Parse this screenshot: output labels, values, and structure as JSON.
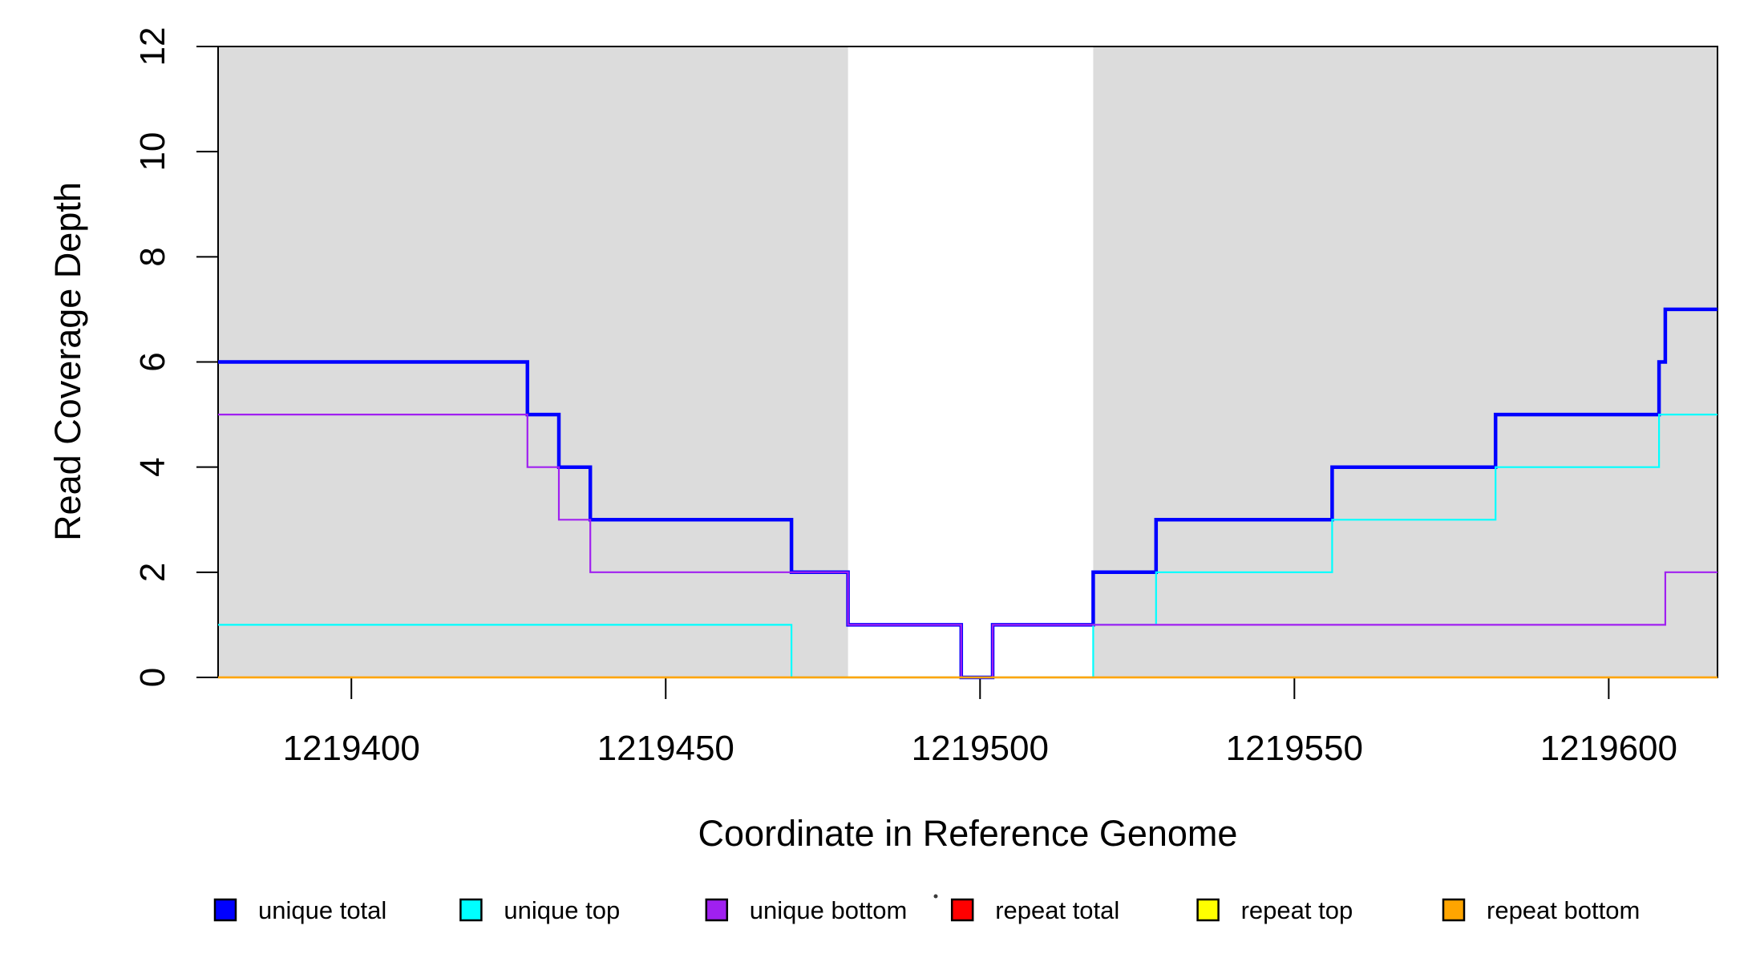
{
  "chart_data": {
    "type": "line",
    "step": "post",
    "title": "",
    "xlabel": "Coordinate in Reference Genome",
    "ylabel": "Read Coverage Depth",
    "xlim": [
      1219378.8,
      1219617.3
    ],
    "ylim": [
      0,
      12
    ],
    "x_ticks": [
      1219400,
      1219450,
      1219500,
      1219550,
      1219600
    ],
    "y_ticks": [
      0,
      2,
      4,
      6,
      8,
      10,
      12
    ],
    "grid": false,
    "legend_position": "bottom",
    "plot_background": "#ffffff",
    "band_color": "#DCDCDC",
    "background_bands": [
      {
        "x_start": 1219378.8,
        "x_end": 1219479,
        "color": "#DCDCDC"
      },
      {
        "x_start": 1219518,
        "x_end": 1219617.3,
        "color": "#DCDCDC"
      }
    ],
    "series": [
      {
        "name": "unique total",
        "color": "#0000FF",
        "lwd": 4.5,
        "points": [
          [
            1219378.8,
            6
          ],
          [
            1219428,
            5
          ],
          [
            1219433,
            4
          ],
          [
            1219438,
            3
          ],
          [
            1219470,
            2
          ],
          [
            1219479,
            1
          ],
          [
            1219497,
            0
          ],
          [
            1219502,
            1
          ],
          [
            1219518,
            2
          ],
          [
            1219528,
            3
          ],
          [
            1219556,
            4
          ],
          [
            1219582,
            5
          ],
          [
            1219608,
            6
          ],
          [
            1219609,
            7
          ]
        ]
      },
      {
        "name": "unique top",
        "color": "#00FFFF",
        "lwd": 2.2,
        "points": [
          [
            1219378.8,
            1
          ],
          [
            1219470,
            0
          ],
          [
            1219518,
            1
          ],
          [
            1219528,
            2
          ],
          [
            1219556,
            3
          ],
          [
            1219582,
            4
          ],
          [
            1219608,
            5
          ]
        ]
      },
      {
        "name": "unique bottom",
        "color": "#A020F0",
        "lwd": 2.2,
        "points": [
          [
            1219378.8,
            5
          ],
          [
            1219428,
            4
          ],
          [
            1219433,
            3
          ],
          [
            1219438,
            2
          ],
          [
            1219479,
            1
          ],
          [
            1219497,
            0
          ],
          [
            1219502,
            1
          ],
          [
            1219609,
            2
          ]
        ]
      },
      {
        "name": "repeat total",
        "color": "#FF0000",
        "lwd": 2.2,
        "points": [
          [
            1219378.8,
            0
          ]
        ]
      },
      {
        "name": "repeat top",
        "color": "#FFFF00",
        "lwd": 2.2,
        "points": [
          [
            1219378.8,
            0
          ]
        ]
      },
      {
        "name": "repeat bottom",
        "color": "#FFA500",
        "lwd": 2.2,
        "points": [
          [
            1219378.8,
            0
          ]
        ]
      }
    ],
    "legend": [
      {
        "label": "unique total",
        "color": "#0000FF"
      },
      {
        "label": "unique top",
        "color": "#00FFFF"
      },
      {
        "label": "unique bottom",
        "color": "#A020F0"
      },
      {
        "label": "repeat total",
        "color": "#FF0000"
      },
      {
        "label": "repeat top",
        "color": "#FFFF00"
      },
      {
        "label": "repeat bottom",
        "color": "#FFA500"
      }
    ]
  }
}
